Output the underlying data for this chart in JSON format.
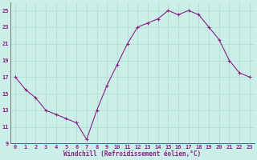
{
  "x": [
    0,
    1,
    2,
    3,
    4,
    5,
    6,
    7,
    8,
    9,
    10,
    11,
    12,
    13,
    14,
    15,
    16,
    17,
    18,
    19,
    20,
    21,
    22,
    23
  ],
  "y": [
    17,
    15.5,
    14.5,
    13,
    12.5,
    12,
    11.5,
    9.5,
    13,
    16,
    18.5,
    21,
    23,
    23.5,
    24,
    25,
    24.5,
    25,
    24.5,
    23,
    21.5,
    19,
    17.5,
    17
  ],
  "line_color": "#882288",
  "marker": "+",
  "marker_size": 3,
  "marker_color": "#882288",
  "background_color": "#cceee8",
  "grid_color": "#aaddcc",
  "xlabel": "Windchill (Refroidissement éolien,°C)",
  "xlabel_color": "#882288",
  "tick_color": "#882288",
  "ylim": [
    9,
    26
  ],
  "yticks": [
    9,
    11,
    13,
    15,
    17,
    19,
    21,
    23,
    25
  ],
  "ytick_labels": [
    "9",
    "11",
    "13",
    "15",
    "17",
    "19",
    "21",
    "23",
    "25"
  ],
  "xlim": [
    -0.5,
    23.5
  ],
  "xticks": [
    0,
    1,
    2,
    3,
    4,
    5,
    6,
    7,
    8,
    9,
    10,
    11,
    12,
    13,
    14,
    15,
    16,
    17,
    18,
    19,
    20,
    21,
    22,
    23
  ],
  "xtick_labels": [
    "0",
    "1",
    "2",
    "3",
    "4",
    "5",
    "6",
    "7",
    "8",
    "9",
    "10",
    "11",
    "12",
    "13",
    "14",
    "15",
    "16",
    "17",
    "18",
    "19",
    "20",
    "21",
    "22",
    "23"
  ],
  "spine_left_color": "#666666",
  "spine_bottom_color": "#882288"
}
